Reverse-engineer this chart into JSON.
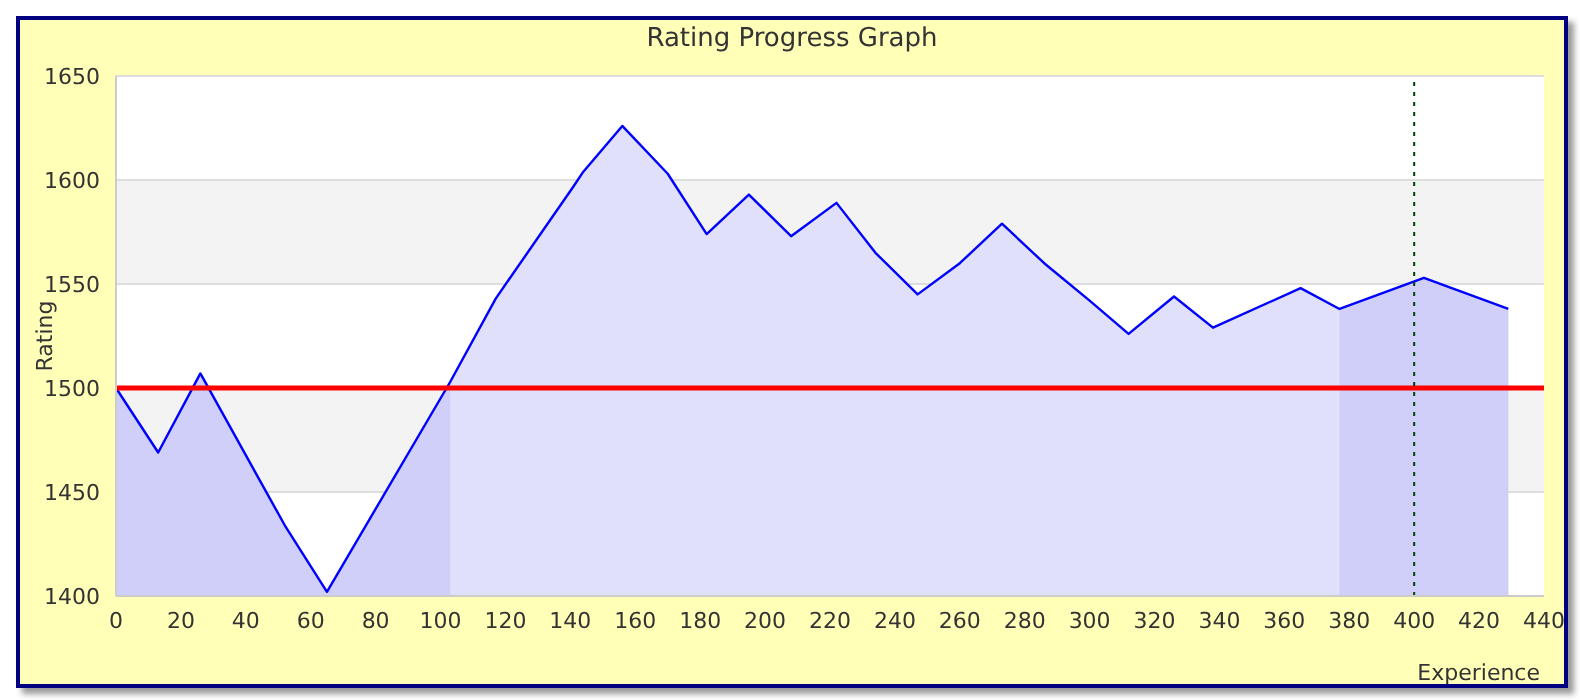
{
  "chart_data": {
    "type": "area",
    "title": "Rating Progress Graph",
    "xlabel": "Experience",
    "ylabel": "Rating",
    "xlim": [
      0,
      440
    ],
    "xticks": [
      0,
      20,
      40,
      60,
      80,
      100,
      120,
      140,
      160,
      180,
      200,
      220,
      240,
      260,
      280,
      300,
      320,
      340,
      360,
      380,
      400,
      420,
      440
    ],
    "ylim": [
      1400,
      1650
    ],
    "yticks": [
      1400,
      1450,
      1500,
      1550,
      1600,
      1650
    ],
    "grid": "y",
    "legend": false,
    "series": [
      {
        "color": "#0000ff",
        "x": [
          0,
          13,
          26,
          52,
          65,
          103,
          117,
          141,
          144,
          156,
          170,
          182,
          195,
          208,
          222,
          234,
          247,
          260,
          273,
          286,
          300,
          312,
          326,
          338,
          365,
          377,
          403,
          429
        ],
        "values": [
          1500,
          1469,
          1507,
          1434,
          1402,
          1503,
          1543,
          1597,
          1604,
          1626,
          1603,
          1574,
          1593,
          1573,
          1589,
          1565,
          1545,
          1560,
          1579,
          1560,
          1542,
          1526,
          1544,
          1529,
          1548,
          1538,
          1553,
          1538
        ]
      },
      {
        "color": "#cfcffa",
        "x": [
          0,
          13,
          26,
          52,
          65,
          103
        ],
        "values": [
          1500,
          1469,
          1507,
          1434,
          1402,
          1503
        ]
      },
      {
        "color": "#cfcffa",
        "x": [
          377,
          403,
          429
        ],
        "values": [
          1538,
          1553,
          1538
        ]
      }
    ],
    "ref_lines": [
      {
        "axis": "y",
        "value": 1500,
        "color": "#ff0000",
        "line_style": "solid"
      },
      {
        "axis": "x",
        "value": 400,
        "color": "#004000",
        "line_style": "dotted"
      }
    ]
  }
}
